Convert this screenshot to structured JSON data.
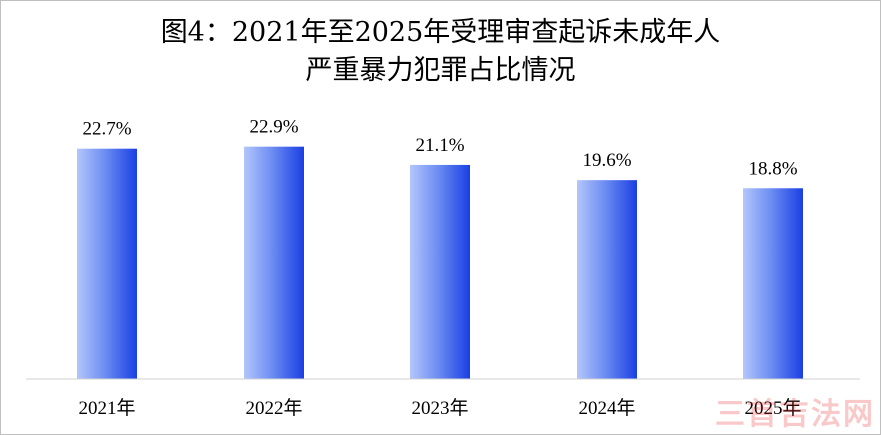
{
  "chart_data": {
    "type": "bar",
    "title_line1": "图4：2021年至2025年受理审查起诉未成年人",
    "title_line2": "严重暴力犯罪占比情况",
    "categories": [
      "2021年",
      "2022年",
      "2023年",
      "2024年",
      "2025年"
    ],
    "values": [
      22.7,
      22.9,
      21.1,
      19.6,
      18.8
    ],
    "labels": [
      "22.7%",
      "22.9%",
      "21.1%",
      "19.6%",
      "18.8%"
    ],
    "xlabel": "",
    "ylabel": "",
    "ylim": [
      0,
      27.5
    ],
    "grid": false,
    "legend": "none",
    "bar_color_light": "#b3c6fb",
    "bar_color_dark": "#1a3fe3"
  },
  "watermark": "三首吉法网"
}
